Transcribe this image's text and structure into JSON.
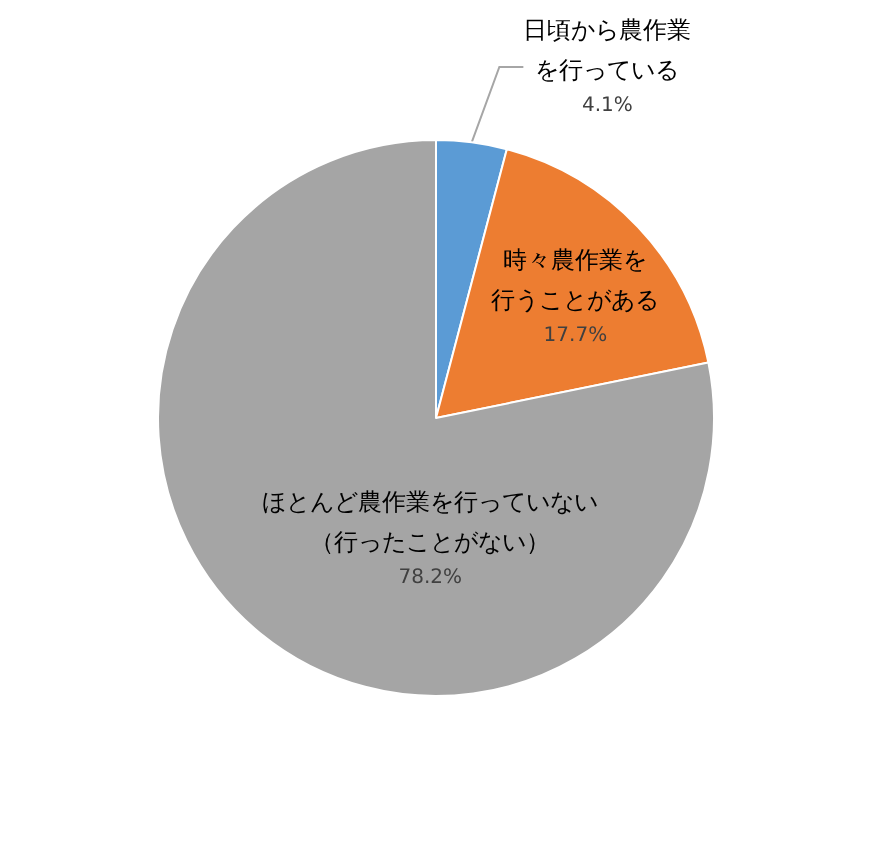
{
  "chart_data": {
    "type": "pie",
    "categories": [
      "日頃から農作業を行っている",
      "時々農作業を行うことがある",
      "ほとんど農作業を行っていない（行ったことがない）"
    ],
    "values": [
      4.1,
      17.7,
      78.2
    ],
    "colors": [
      "#5b9bd5",
      "#ed7d31",
      "#a5a5a5"
    ],
    "value_labels": [
      "4.1%",
      "17.7%",
      "78.2%"
    ],
    "legend": false
  }
}
